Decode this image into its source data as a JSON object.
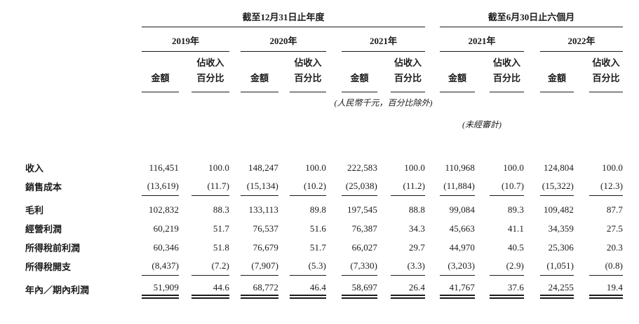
{
  "table": {
    "annual_header": "截至12月31日止年度",
    "interim_header": "截至6月30日止六個月",
    "year_headers": [
      "2019年",
      "2020年",
      "2021年",
      "2021年",
      "2022年"
    ],
    "col_amount": "金額",
    "col_pct_line1": "佔收入",
    "col_pct_line2": "百分比",
    "notes": {
      "currency": "(人民幣千元，百分比除外)",
      "unaudited": "(未經審計)"
    },
    "rows": [
      {
        "label": "收入",
        "values": [
          "116,451",
          "100.0",
          "148,247",
          "100.0",
          "222,583",
          "100.0",
          "110,968",
          "100.0",
          "124,804",
          "100.0"
        ]
      },
      {
        "label": "銷售成本",
        "values": [
          "(13,619)",
          "(11.7)",
          "(15,134)",
          "(10.2)",
          "(25,038)",
          "(11.2)",
          "(11,884)",
          "(10.7)",
          "(15,322)",
          "(12.3)"
        ]
      },
      {
        "label": "毛利",
        "values": [
          "102,832",
          "88.3",
          "133,113",
          "89.8",
          "197,545",
          "88.8",
          "99,084",
          "89.3",
          "109,482",
          "87.7"
        ]
      },
      {
        "label": "經營利潤",
        "values": [
          "60,219",
          "51.7",
          "76,537",
          "51.6",
          "76,387",
          "34.3",
          "45,663",
          "41.1",
          "34,359",
          "27.5"
        ]
      },
      {
        "label": "所得稅前利潤",
        "values": [
          "60,346",
          "51.8",
          "76,679",
          "51.7",
          "66,027",
          "29.7",
          "44,970",
          "40.5",
          "25,306",
          "20.3"
        ]
      },
      {
        "label": "所得稅開支",
        "values": [
          "(8,437)",
          "(7.2)",
          "(7,907)",
          "(5.3)",
          "(7,330)",
          "(3.3)",
          "(3,203)",
          "(2.9)",
          "(1,051)",
          "(0.8)"
        ]
      },
      {
        "label": "年內／期內利潤",
        "values": [
          "51,909",
          "44.6",
          "68,772",
          "46.4",
          "58,697",
          "26.4",
          "41,767",
          "37.6",
          "24,255",
          "19.4"
        ]
      }
    ]
  }
}
